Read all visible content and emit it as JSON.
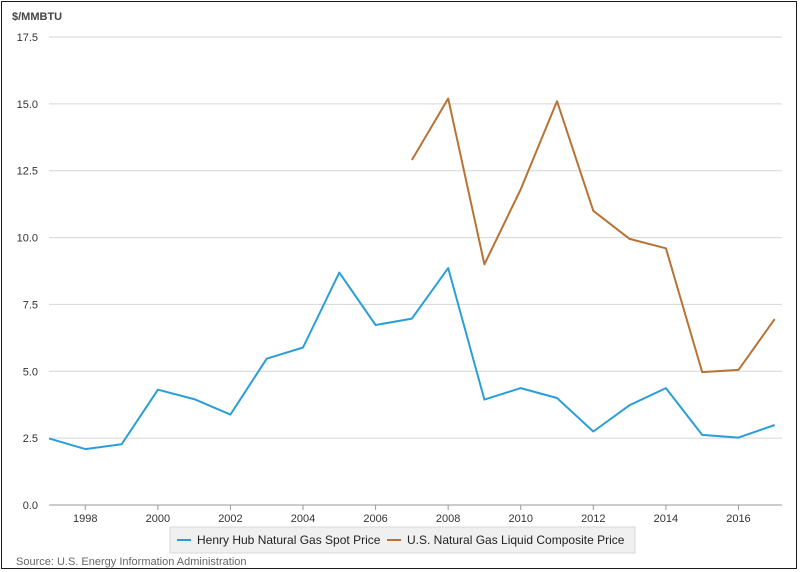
{
  "chart_data": {
    "type": "line",
    "ylabel": "$/MMBTU",
    "ylim": [
      0,
      17.5
    ],
    "yticks": [
      "0.0",
      "2.5",
      "5.0",
      "7.5",
      "10.0",
      "12.5",
      "15.0",
      "17.5"
    ],
    "xlim": [
      1997,
      2017.2
    ],
    "xticks": [
      "1998",
      "2000",
      "2002",
      "2004",
      "2006",
      "2008",
      "2010",
      "2012",
      "2014",
      "2016"
    ],
    "grid": true,
    "legend_position": "bottom",
    "series": [
      {
        "name": "Henry Hub Natural Gas Spot Price",
        "color": "#2a9fd6",
        "x": [
          1997,
          1998,
          1999,
          2000,
          2001,
          2002,
          2003,
          2004,
          2005,
          2006,
          2007,
          2008,
          2009,
          2010,
          2011,
          2012,
          2013,
          2014,
          2015,
          2016,
          2017
        ],
        "values": [
          2.49,
          2.09,
          2.27,
          4.31,
          3.96,
          3.38,
          5.47,
          5.89,
          8.69,
          6.73,
          6.97,
          8.86,
          3.94,
          4.37,
          4.0,
          2.75,
          3.73,
          4.37,
          2.62,
          2.52,
          2.99
        ]
      },
      {
        "name": "U.S. Natural Gas Liquid Composite Price",
        "color": "#b87333",
        "x": [
          2007,
          2008,
          2009,
          2010,
          2011,
          2012,
          2013,
          2014,
          2015,
          2016,
          2017
        ],
        "values": [
          12.9,
          15.2,
          9.0,
          11.8,
          15.1,
          11.0,
          9.95,
          9.6,
          4.97,
          5.05,
          6.95
        ]
      }
    ],
    "source": "Source: U.S. Energy Information Administration"
  }
}
